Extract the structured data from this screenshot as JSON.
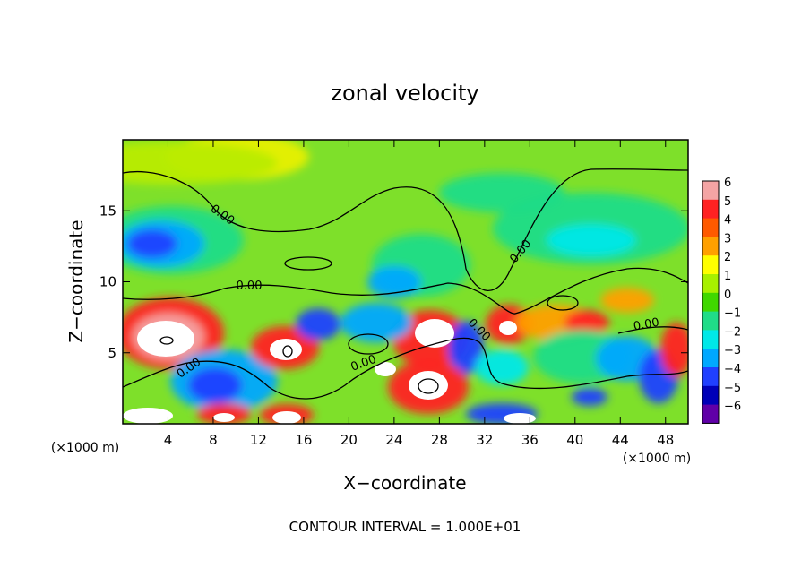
{
  "chart_data": {
    "type": "heatmap",
    "title": "zonal velocity",
    "xlabel": "X−coordinate",
    "ylabel": "Z−coordinate",
    "x_unit_left": "(×1000 m)",
    "x_unit_right": "(×1000 m)",
    "footer": "CONTOUR INTERVAL = 1.000E+01",
    "xlim": [
      0,
      50
    ],
    "ylim": [
      0,
      20
    ],
    "x_ticks": [
      4,
      8,
      12,
      16,
      20,
      24,
      28,
      32,
      36,
      40,
      44,
      48
    ],
    "y_ticks": [
      5,
      10,
      15
    ],
    "contour_labels": [
      "0.00",
      "0.00",
      "0.00",
      "0.00",
      "0.00",
      "0.00",
      "0.00"
    ],
    "colorbar": {
      "min": -6,
      "max": 6,
      "ticks": [
        6,
        5,
        4,
        3,
        2,
        1,
        0,
        -1,
        -2,
        -3,
        -4,
        -5,
        -6
      ],
      "colors": [
        "#f4a4a4",
        "#ff2222",
        "#ff5a00",
        "#ffa000",
        "#ffff00",
        "#a8f000",
        "#40d800",
        "#20dc88",
        "#00e8e8",
        "#00a8ff",
        "#2040ff",
        "#0000b8",
        "#6000a8"
      ]
    }
  }
}
